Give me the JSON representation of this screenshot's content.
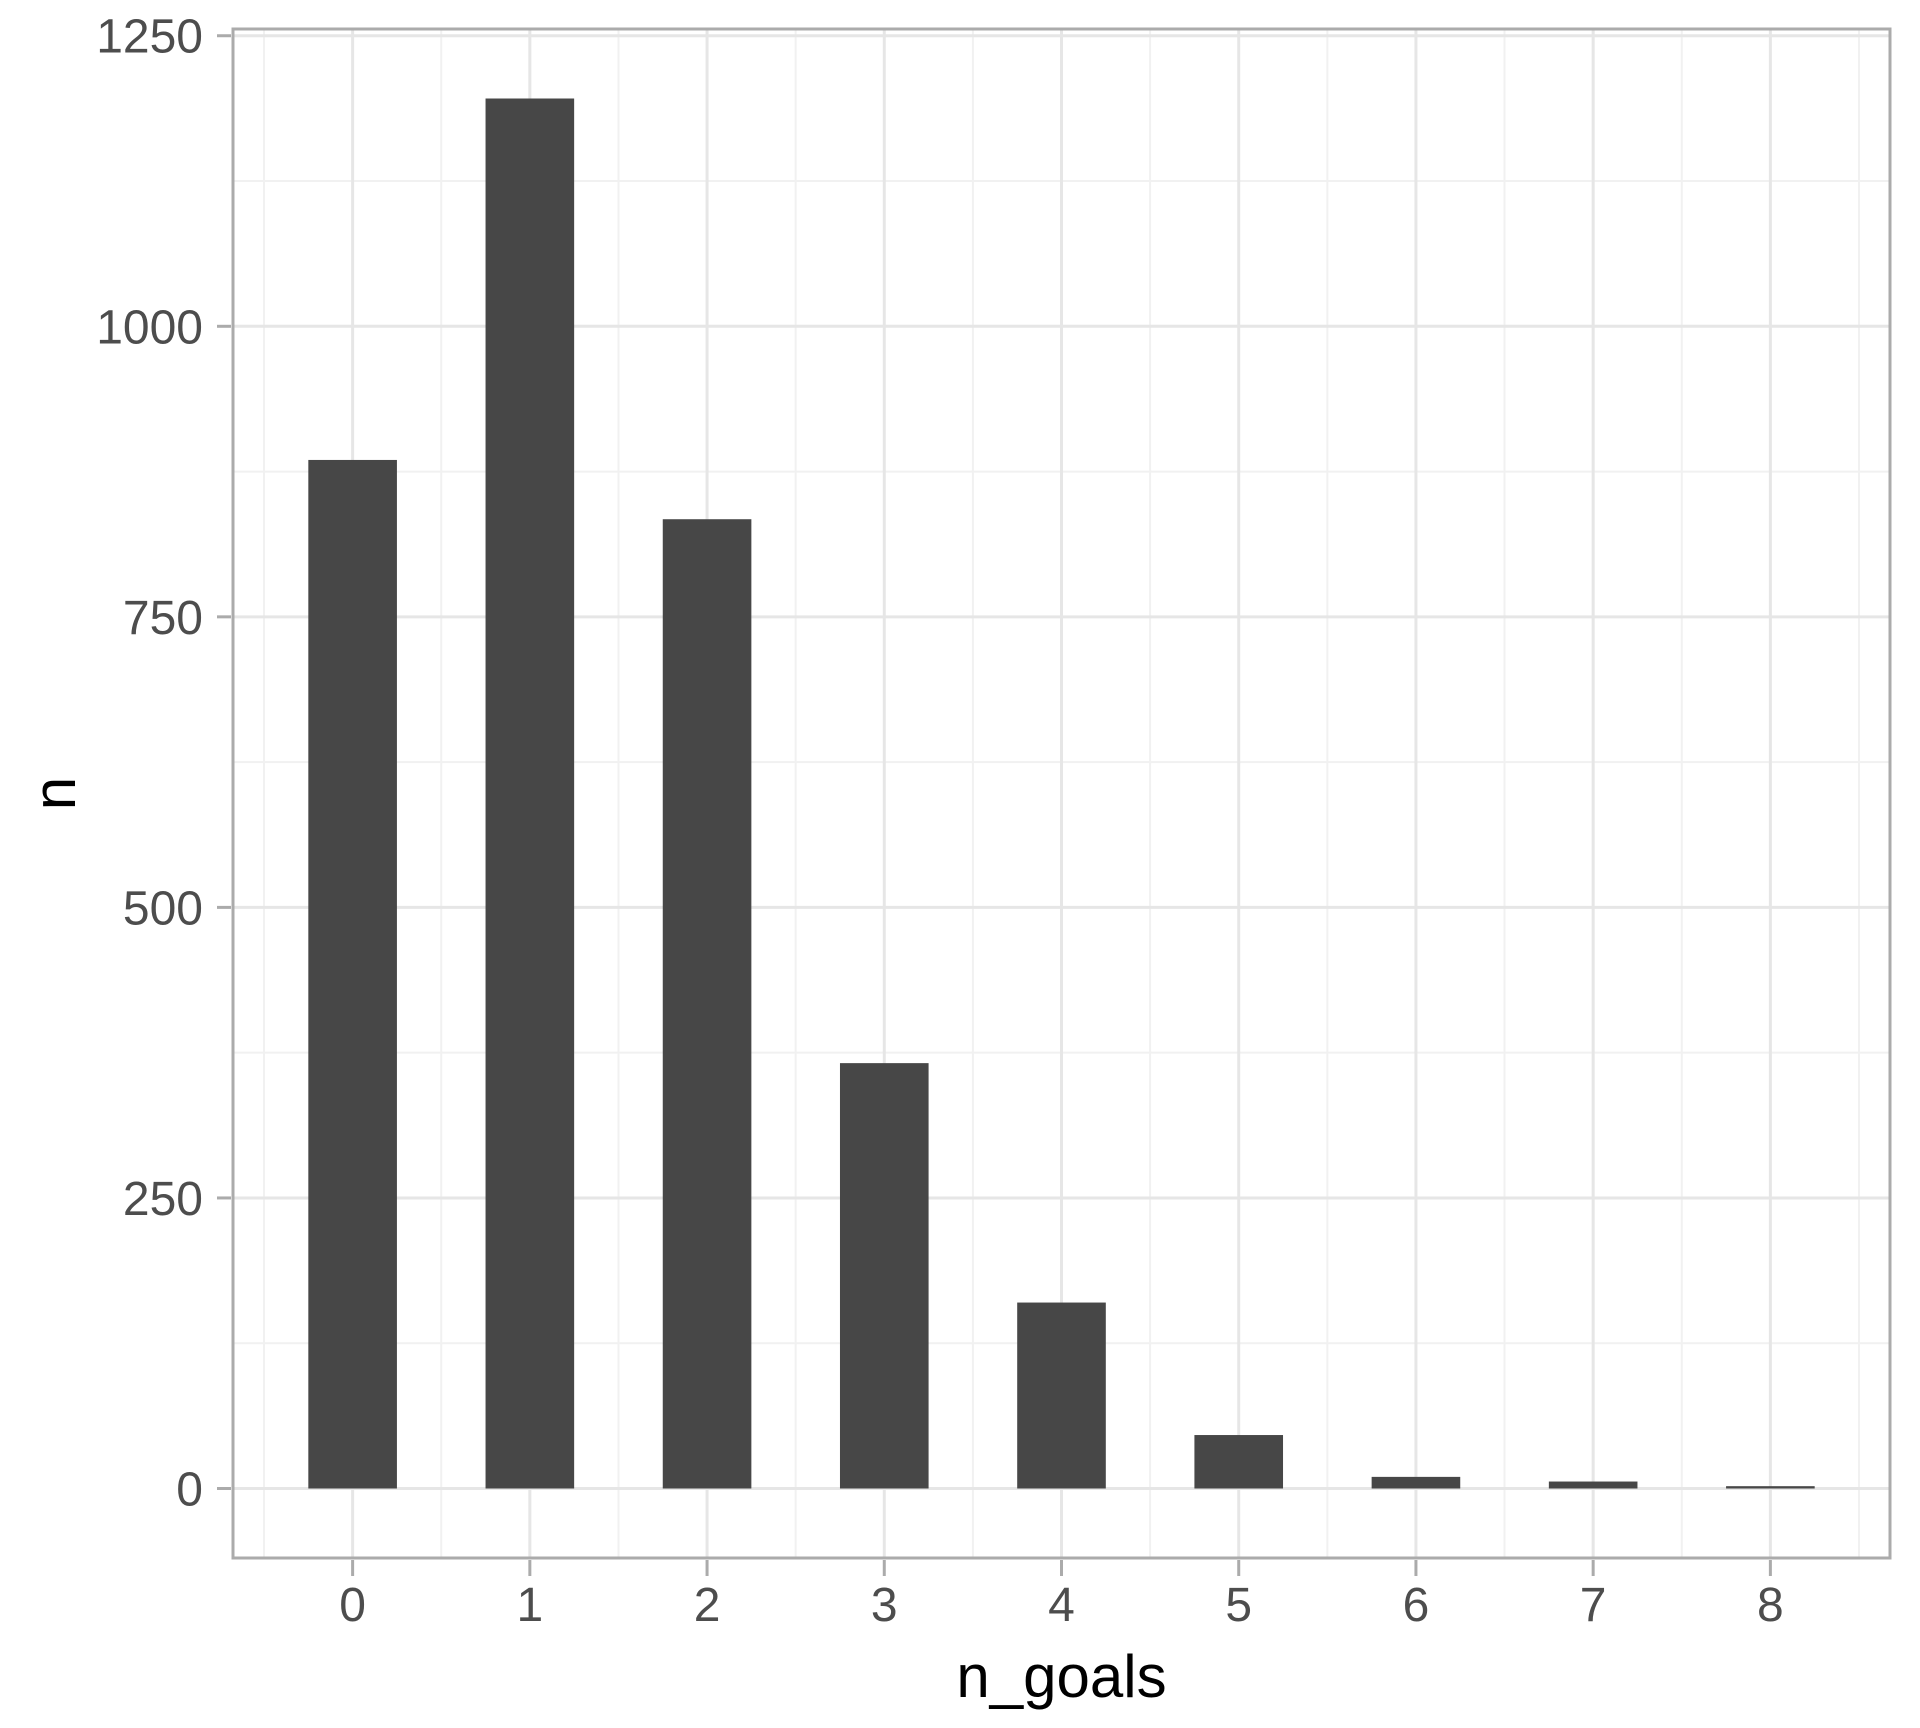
{
  "chart_data": {
    "type": "bar",
    "title": "",
    "xlabel": "n_goals",
    "ylabel": "n",
    "categories": [
      0,
      1,
      2,
      3,
      4,
      5,
      6,
      7,
      8
    ],
    "values": [
      885,
      1196,
      834,
      366,
      160,
      46,
      10,
      6,
      2
    ],
    "x_tick_labels": [
      "0",
      "1",
      "2",
      "3",
      "4",
      "5",
      "6",
      "7",
      "8"
    ],
    "y_ticks": [
      0,
      250,
      500,
      750,
      1000,
      1250
    ],
    "y_minor_ticks": [
      125,
      375,
      625,
      875,
      1125
    ],
    "ylim": [
      -59.8,
      1255.8
    ],
    "xlim": [
      -0.675,
      8.675
    ],
    "bar_width_ratio": 0.5,
    "grid": "major-and-minor",
    "legend": "none",
    "colors": {
      "bar_fill": "#474747",
      "panel_background": "#ffffff",
      "panel_border": "#ababab",
      "grid_major": "#e6e6e6",
      "grid_minor": "#f1f1f1",
      "tick_mark": "#ababab",
      "axis_text": "#4d4d4d",
      "axis_title": "#000000"
    }
  }
}
